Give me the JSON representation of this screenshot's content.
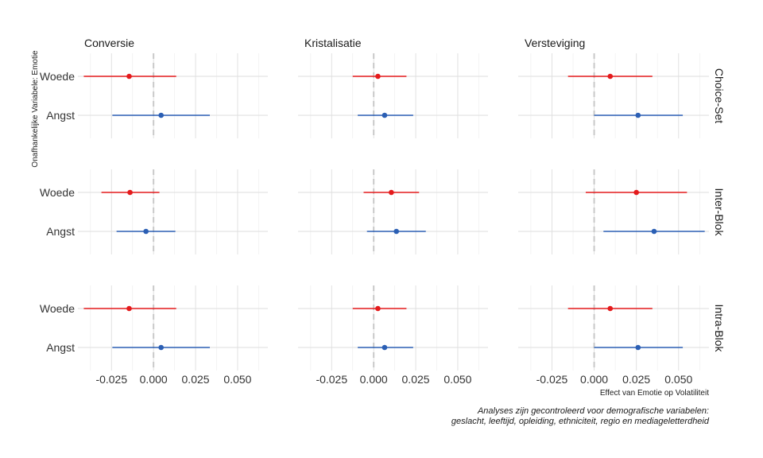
{
  "chart_data": {
    "type": "forest",
    "facet_columns": [
      "Conversie",
      "Kristalisatie",
      "Versteviging"
    ],
    "facet_rows": [
      "Choice-Set",
      "Inter-Blok",
      "Intra-Blok"
    ],
    "categories": [
      "Woede",
      "Angst"
    ],
    "x_ticks": [
      -0.025,
      0.0,
      0.025,
      0.05
    ],
    "x_tick_labels": [
      "-0.025",
      "0.000",
      "0.025",
      "0.050"
    ],
    "xlim": [
      -0.045,
      0.068
    ],
    "reference_line": 0,
    "xlabel": "Effect van Emotie op Volatiliteit",
    "ylabel": "Onafhankelijke Variabele: Emotie",
    "caption_lines": [
      "Analyses zijn gecontroleerd voor demografische variabelen:",
      "geslacht, leeftijd, opleiding, ethniciteit, regio en mediageletterdheid"
    ],
    "colors": {
      "Woede": "#e41a1c",
      "Angst": "#2b5fb4"
    },
    "panels": [
      {
        "row": "Choice-Set",
        "col": "Conversie",
        "points": [
          {
            "emotion": "Woede",
            "estimate": -0.0145,
            "lower": -0.0415,
            "upper": 0.0135
          },
          {
            "emotion": "Angst",
            "estimate": 0.0045,
            "lower": -0.0245,
            "upper": 0.0335
          }
        ]
      },
      {
        "row": "Choice-Set",
        "col": "Kristalisatie",
        "points": [
          {
            "emotion": "Woede",
            "estimate": 0.0025,
            "lower": -0.0125,
            "upper": 0.0195
          },
          {
            "emotion": "Angst",
            "estimate": 0.0065,
            "lower": -0.0095,
            "upper": 0.0235
          }
        ]
      },
      {
        "row": "Choice-Set",
        "col": "Versteviging",
        "points": [
          {
            "emotion": "Woede",
            "estimate": 0.0095,
            "lower": -0.0155,
            "upper": 0.0345
          },
          {
            "emotion": "Angst",
            "estimate": 0.026,
            "lower": 0.0,
            "upper": 0.0525
          }
        ]
      },
      {
        "row": "Inter-Blok",
        "col": "Conversie",
        "points": [
          {
            "emotion": "Woede",
            "estimate": -0.014,
            "lower": -0.031,
            "upper": 0.0035
          },
          {
            "emotion": "Angst",
            "estimate": -0.0045,
            "lower": -0.022,
            "upper": 0.013
          }
        ]
      },
      {
        "row": "Inter-Blok",
        "col": "Kristalisatie",
        "points": [
          {
            "emotion": "Woede",
            "estimate": 0.0105,
            "lower": -0.006,
            "upper": 0.027
          },
          {
            "emotion": "Angst",
            "estimate": 0.0135,
            "lower": -0.004,
            "upper": 0.031
          }
        ]
      },
      {
        "row": "Inter-Blok",
        "col": "Versteviging",
        "points": [
          {
            "emotion": "Woede",
            "estimate": 0.025,
            "lower": -0.005,
            "upper": 0.055
          },
          {
            "emotion": "Angst",
            "estimate": 0.0355,
            "lower": 0.0055,
            "upper": 0.0655
          }
        ]
      },
      {
        "row": "Intra-Blok",
        "col": "Conversie",
        "points": [
          {
            "emotion": "Woede",
            "estimate": -0.0145,
            "lower": -0.0415,
            "upper": 0.0135
          },
          {
            "emotion": "Angst",
            "estimate": 0.0045,
            "lower": -0.0245,
            "upper": 0.0335
          }
        ]
      },
      {
        "row": "Intra-Blok",
        "col": "Kristalisatie",
        "points": [
          {
            "emotion": "Woede",
            "estimate": 0.0025,
            "lower": -0.0125,
            "upper": 0.0195
          },
          {
            "emotion": "Angst",
            "estimate": 0.0065,
            "lower": -0.0095,
            "upper": 0.0235
          }
        ]
      },
      {
        "row": "Intra-Blok",
        "col": "Versteviging",
        "points": [
          {
            "emotion": "Woede",
            "estimate": 0.0095,
            "lower": -0.0155,
            "upper": 0.0345
          },
          {
            "emotion": "Angst",
            "estimate": 0.026,
            "lower": 0.0,
            "upper": 0.0525
          }
        ]
      }
    ]
  }
}
